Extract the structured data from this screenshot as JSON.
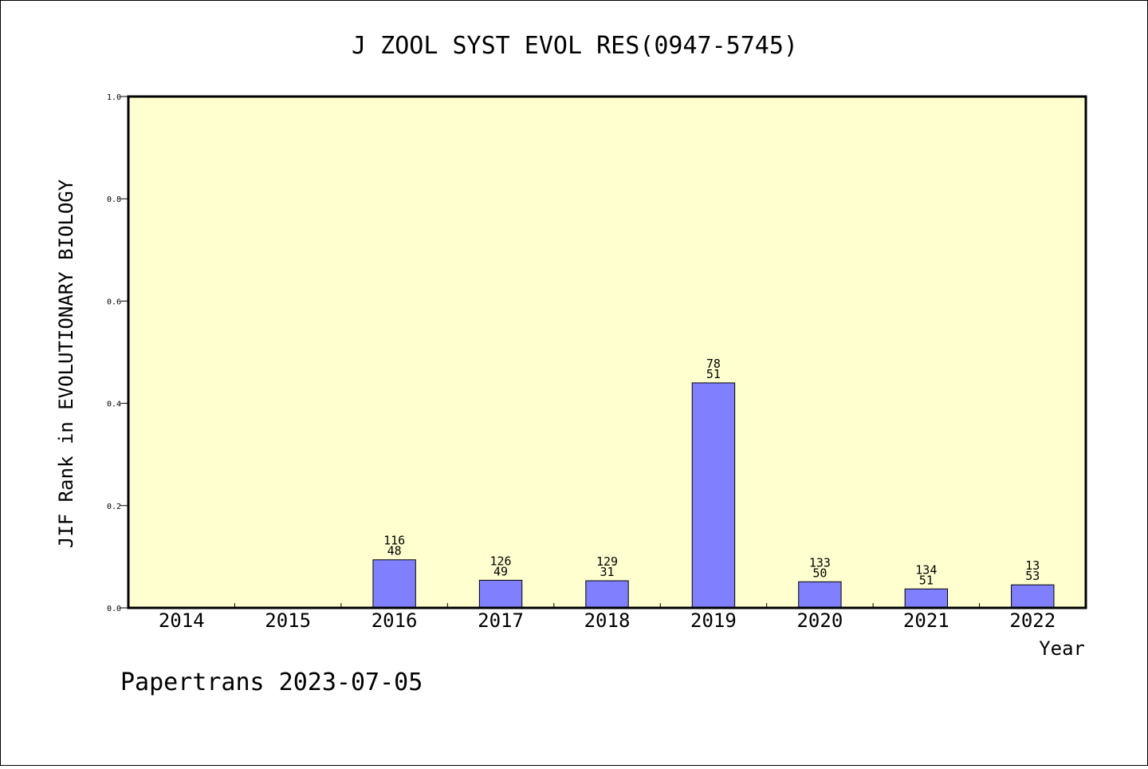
{
  "chart_data": {
    "type": "bar",
    "title": "J ZOOL SYST EVOL RES(0947-5745)",
    "xlabel": "Year",
    "ylabel": "JIF Rank in EVOLUTIONARY BIOLOGY",
    "ylim": [
      0,
      1.0
    ],
    "yticks": [
      "0.0",
      "0.2",
      "0.4",
      "0.6",
      "0.8",
      "1.0"
    ],
    "categories": [
      "2014",
      "2015",
      "2016",
      "2017",
      "2018",
      "2019",
      "2020",
      "2021",
      "2022"
    ],
    "values": [
      null,
      null,
      0.094,
      0.054,
      0.053,
      0.44,
      0.051,
      0.037,
      0.045
    ],
    "bar_labels": [
      null,
      null,
      {
        "top": "116",
        "bottom": "48"
      },
      {
        "top": "126",
        "bottom": "49"
      },
      {
        "top": "129",
        "bottom": "31"
      },
      {
        "top": "78",
        "bottom": "51"
      },
      {
        "top": "133",
        "bottom": "50"
      },
      {
        "top": "134",
        "bottom": "51"
      },
      {
        "top": "13",
        "bottom": "53"
      }
    ],
    "colors": {
      "plot_background": "#ffffd0",
      "bar_fill": "#8080ff",
      "bar_stroke": "#000000"
    },
    "grid": false,
    "legend": "none"
  },
  "footer": {
    "text": "Papertrans 2023-07-05"
  }
}
